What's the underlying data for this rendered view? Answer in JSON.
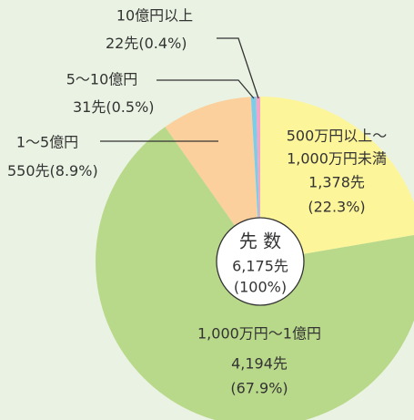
{
  "chart_data": {
    "type": "pie",
    "categories": [
      [
        "500万円以上～",
        "1,000万円未満"
      ],
      [
        "1,000万円～1億円"
      ],
      [
        "1～5億円"
      ],
      [
        "5～10億円"
      ],
      [
        "10億円以上"
      ]
    ],
    "values": [
      22.3,
      67.9,
      8.9,
      0.5,
      0.4
    ],
    "value_labels": [
      "(22.3%)",
      "(67.9%)",
      "(8.9%)",
      "(0.5%)",
      "(0.4%)"
    ],
    "counts": [
      1378,
      4194,
      550,
      31,
      22
    ],
    "count_labels": [
      "1,378先",
      "4,194先",
      "550先",
      "31先",
      "22先"
    ],
    "colors": [
      "#fdf59a",
      "#b9d98a",
      "#fbd09c",
      "#7ecde8",
      "#f4a6c8"
    ],
    "center_title": "先 数",
    "total": 6175,
    "total_label": "6,175先",
    "total_percent": 100,
    "total_percent_label": "(100%)"
  }
}
